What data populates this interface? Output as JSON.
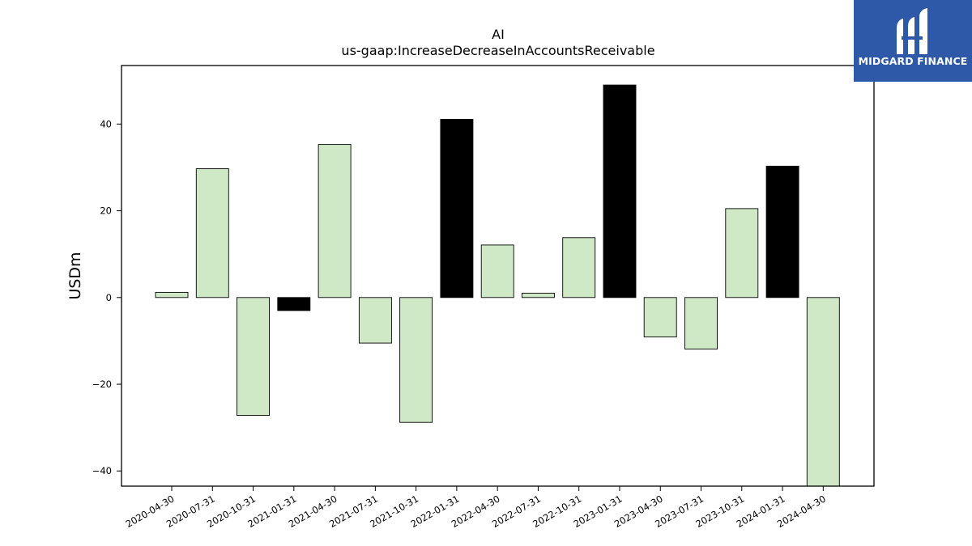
{
  "chart_data": {
    "type": "bar",
    "title": "AI",
    "subtitle": "us-gaap:IncreaseDecreaseInAccountsReceivable",
    "xlabel": "",
    "ylabel": "USDm",
    "ylim": [
      -43.5,
      53.5
    ],
    "yticks": [
      -40,
      -20,
      0,
      20,
      40
    ],
    "grid": false,
    "categories": [
      "2020-04-30",
      "2020-07-31",
      "2020-10-31",
      "2021-01-31",
      "2021-04-30",
      "2021-07-31",
      "2021-10-31",
      "2022-01-31",
      "2022-04-30",
      "2022-07-31",
      "2022-10-31",
      "2023-01-31",
      "2023-04-30",
      "2023-07-31",
      "2023-10-31",
      "2024-01-31",
      "2024-04-30"
    ],
    "values": [
      1.2,
      29.7,
      -27.2,
      -3.0,
      35.3,
      -10.5,
      -28.8,
      41.1,
      12.1,
      1.0,
      13.8,
      49.0,
      -9.1,
      -11.9,
      20.5,
      30.3,
      -43.5
    ],
    "bar_colors": [
      "#cfe9c7",
      "#cfe9c7",
      "#cfe9c7",
      "#000000",
      "#cfe9c7",
      "#cfe9c7",
      "#cfe9c7",
      "#000000",
      "#cfe9c7",
      "#cfe9c7",
      "#cfe9c7",
      "#000000",
      "#cfe9c7",
      "#cfe9c7",
      "#cfe9c7",
      "#000000",
      "#cfe9c7"
    ]
  },
  "logo": {
    "text": "MIDGARD FINANCE",
    "background": "#2e59a8"
  }
}
